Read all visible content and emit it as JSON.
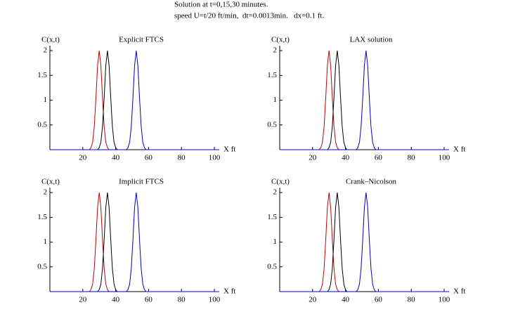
{
  "title_lines": [
    "Solution at t=0,15,30 minutes.",
    "speed U=t/20 ft/min,  dt=0.0013min.   dx=0.1 ft."
  ],
  "chart_data": [
    {
      "type": "line",
      "title": "Explicit FTCS",
      "xlabel": "X ft",
      "ylabel": "C(x,t)",
      "xlim": [
        0,
        103
      ],
      "ylim": [
        0,
        2.1
      ],
      "xticks": [
        20,
        40,
        60,
        80,
        100
      ],
      "yticks": [
        0.5,
        1,
        1.5,
        2
      ],
      "series": [
        {
          "color": "#c00000",
          "x": [
            24,
            25,
            26,
            27,
            28,
            29,
            30,
            31,
            32,
            33,
            34,
            35,
            36
          ],
          "values": [
            0,
            0.04,
            0.15,
            0.47,
            1.05,
            1.7,
            2,
            1.7,
            1.05,
            0.47,
            0.15,
            0.04,
            0
          ]
        },
        {
          "color": "#000000",
          "x": [
            29,
            30,
            31,
            32,
            33,
            34,
            35,
            36,
            37,
            38,
            39,
            40,
            41
          ],
          "values": [
            0,
            0.04,
            0.15,
            0.47,
            1.05,
            1.7,
            2,
            1.7,
            1.05,
            0.47,
            0.15,
            0.04,
            0
          ]
        },
        {
          "color": "#0000cc",
          "x": [
            0,
            46.5,
            47.5,
            48.5,
            49.5,
            50.5,
            51.5,
            52.5,
            53.5,
            54.5,
            55.5,
            56.5,
            57.5,
            58.5,
            103
          ],
          "values": [
            0,
            0,
            0.04,
            0.15,
            0.47,
            1.05,
            1.7,
            2,
            1.7,
            1.05,
            0.47,
            0.15,
            0.04,
            0,
            0
          ]
        }
      ]
    },
    {
      "type": "line",
      "title": "LAX solution",
      "xlabel": "X ft",
      "ylabel": "C(x,t)",
      "xlim": [
        0,
        103
      ],
      "ylim": [
        0,
        2.1
      ],
      "xticks": [
        20,
        40,
        60,
        80,
        100
      ],
      "yticks": [
        0.5,
        1,
        1.5,
        2
      ],
      "series": [
        {
          "color": "#c00000",
          "x": [
            24,
            25,
            26,
            27,
            28,
            29,
            30,
            31,
            32,
            33,
            34,
            35,
            36
          ],
          "values": [
            0,
            0.04,
            0.15,
            0.47,
            1.05,
            1.7,
            2,
            1.7,
            1.05,
            0.47,
            0.15,
            0.04,
            0
          ]
        },
        {
          "color": "#000000",
          "x": [
            29,
            30,
            31,
            32,
            33,
            34,
            35,
            36,
            37,
            38,
            39,
            40,
            41
          ],
          "values": [
            0,
            0.04,
            0.15,
            0.47,
            1.05,
            1.7,
            2,
            1.7,
            1.05,
            0.47,
            0.15,
            0.04,
            0
          ]
        },
        {
          "color": "#0000cc",
          "x": [
            0,
            46.5,
            47.5,
            48.5,
            49.5,
            50.5,
            51.5,
            52.5,
            53.5,
            54.5,
            55.5,
            56.5,
            57.5,
            58.5,
            103
          ],
          "values": [
            0,
            0,
            0.04,
            0.15,
            0.47,
            1.05,
            1.7,
            2,
            1.7,
            1.05,
            0.47,
            0.15,
            0.04,
            0,
            0
          ]
        }
      ]
    },
    {
      "type": "line",
      "title": "Implicit FTCS",
      "xlabel": "X ft",
      "ylabel": "C(x,t)",
      "xlim": [
        0,
        103
      ],
      "ylim": [
        0,
        2.1
      ],
      "xticks": [
        20,
        40,
        60,
        80,
        100
      ],
      "yticks": [
        0.5,
        1,
        1.5,
        2
      ],
      "series": [
        {
          "color": "#c00000",
          "x": [
            24,
            25,
            26,
            27,
            28,
            29,
            30,
            31,
            32,
            33,
            34,
            35,
            36
          ],
          "values": [
            0,
            0.04,
            0.15,
            0.47,
            1.05,
            1.7,
            2,
            1.7,
            1.05,
            0.47,
            0.15,
            0.04,
            0
          ]
        },
        {
          "color": "#000000",
          "x": [
            29,
            30,
            31,
            32,
            33,
            34,
            35,
            36,
            37,
            38,
            39,
            40,
            41
          ],
          "values": [
            0,
            0.04,
            0.15,
            0.47,
            1.05,
            1.7,
            2,
            1.7,
            1.05,
            0.47,
            0.15,
            0.04,
            0
          ]
        },
        {
          "color": "#0000cc",
          "x": [
            0,
            46.5,
            47.5,
            48.5,
            49.5,
            50.5,
            51.5,
            52.5,
            53.5,
            54.5,
            55.5,
            56.5,
            57.5,
            58.5,
            103
          ],
          "values": [
            0,
            0,
            0.04,
            0.15,
            0.47,
            1.05,
            1.7,
            2,
            1.7,
            1.05,
            0.47,
            0.15,
            0.04,
            0,
            0
          ]
        }
      ]
    },
    {
      "type": "line",
      "title": "Crank–Nicolson",
      "xlabel": "X ft",
      "ylabel": "C(x,t)",
      "xlim": [
        0,
        103
      ],
      "ylim": [
        0,
        2.1
      ],
      "xticks": [
        20,
        40,
        60,
        80,
        100
      ],
      "yticks": [
        0.5,
        1,
        1.5,
        2
      ],
      "series": [
        {
          "color": "#c00000",
          "x": [
            24,
            25,
            26,
            27,
            28,
            29,
            30,
            31,
            32,
            33,
            34,
            35,
            36
          ],
          "values": [
            0,
            0.04,
            0.15,
            0.47,
            1.05,
            1.7,
            2,
            1.7,
            1.05,
            0.47,
            0.15,
            0.04,
            0
          ]
        },
        {
          "color": "#000000",
          "x": [
            29,
            30,
            31,
            32,
            33,
            34,
            35,
            36,
            37,
            38,
            39,
            40,
            41
          ],
          "values": [
            0,
            0.04,
            0.15,
            0.47,
            1.05,
            1.7,
            2,
            1.7,
            1.05,
            0.47,
            0.15,
            0.04,
            0
          ]
        },
        {
          "color": "#0000cc",
          "x": [
            0,
            46.5,
            47.5,
            48.5,
            49.5,
            50.5,
            51.5,
            52.5,
            53.5,
            54.5,
            55.5,
            56.5,
            57.5,
            58.5,
            103
          ],
          "values": [
            0,
            0,
            0.04,
            0.15,
            0.47,
            1.05,
            1.7,
            2,
            1.7,
            1.05,
            0.47,
            0.15,
            0.04,
            0,
            0
          ]
        }
      ]
    }
  ]
}
